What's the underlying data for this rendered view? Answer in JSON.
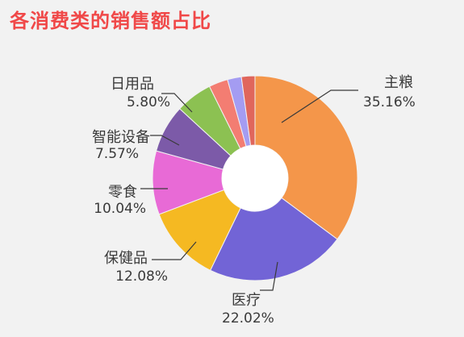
{
  "chart_data": {
    "type": "pie",
    "title": "各消费类的销售额占比",
    "slices": [
      {
        "name": "主粮",
        "value": 35.16,
        "label": "35.16%",
        "color": "#f4964a"
      },
      {
        "name": "医疗",
        "value": 22.02,
        "label": "22.02%",
        "color": "#7264d6"
      },
      {
        "name": "保健品",
        "value": 12.08,
        "label": "12.08%",
        "color": "#f5b922"
      },
      {
        "name": "零食",
        "value": 10.04,
        "label": "10.04%",
        "color": "#e86ad6"
      },
      {
        "name": "智能设备",
        "value": 7.57,
        "label": "7.57%",
        "color": "#7c5aa8"
      },
      {
        "name": "日用品",
        "value": 5.8,
        "label": "5.80%",
        "color": "#8cc152"
      },
      {
        "name": "",
        "value": 3.0,
        "label": "",
        "color": "#f37d72"
      },
      {
        "name": "",
        "value": 2.2,
        "label": "",
        "color": "#a49cf2"
      },
      {
        "name": "",
        "value": 2.13,
        "label": "",
        "color": "#e0665c"
      }
    ],
    "legend": "none",
    "inner_hole": true
  }
}
